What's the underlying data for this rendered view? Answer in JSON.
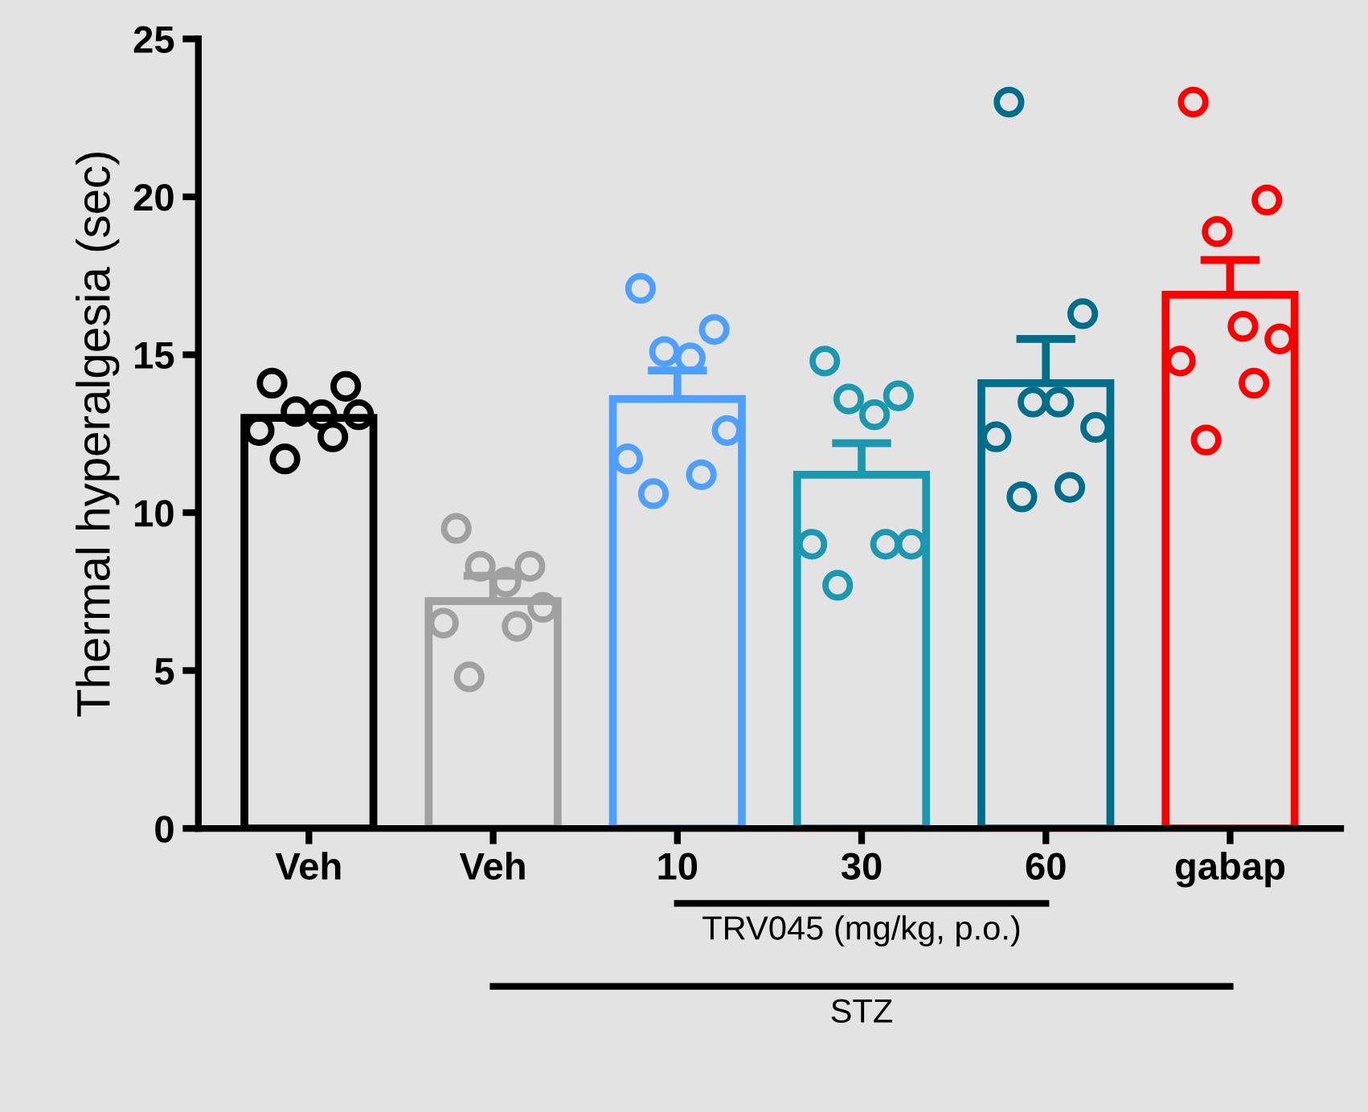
{
  "chart_data": {
    "type": "bar",
    "ylabel": "Thermal hyperalgesia (sec)",
    "categories": [
      "Veh",
      "Veh",
      "10",
      "30",
      "60",
      "gabap"
    ],
    "values": [
      13.0,
      7.2,
      13.6,
      11.2,
      14.1,
      16.9
    ],
    "colors": [
      "#000000",
      "#a0a0a0",
      "#4da0ff",
      "#1a98b0",
      "#006e8a",
      "#ff0000"
    ],
    "errors": [
      null,
      [
        7.2,
        8.0
      ],
      [
        13.6,
        14.5
      ],
      [
        11.2,
        12.2
      ],
      [
        14.1,
        15.5
      ],
      [
        16.9,
        18.0
      ]
    ],
    "series": [
      {
        "type": "scatter",
        "marker": "circle",
        "values": [
          14.1,
          9.5,
          17.1,
          14.8,
          23.0,
          23.0
        ],
        "colors": [
          "#000000",
          "#a0a0a0",
          "#4da0ff",
          "#1a98b0",
          "#006e8a",
          "#ff0000"
        ]
      },
      {
        "type": "scatter",
        "marker": "circle",
        "values": [
          14.0,
          8.3,
          15.8,
          13.7,
          16.3,
          19.9
        ],
        "colors": [
          "#000000",
          "#a0a0a0",
          "#4da0ff",
          "#1a98b0",
          "#006e8a",
          "#ff0000"
        ]
      },
      {
        "type": "scatter",
        "marker": "circle",
        "values": [
          13.2,
          8.3,
          15.1,
          13.6,
          13.5,
          18.9
        ],
        "colors": [
          "#000000",
          "#a0a0a0",
          "#4da0ff",
          "#1a98b0",
          "#006e8a",
          "#ff0000"
        ]
      },
      {
        "type": "scatter",
        "marker": "circle",
        "values": [
          13.1,
          7.8,
          14.9,
          13.1,
          13.5,
          15.9
        ],
        "colors": [
          "#000000",
          "#a0a0a0",
          "#4da0ff",
          "#1a98b0",
          "#006e8a",
          "#ff0000"
        ]
      },
      {
        "type": "scatter",
        "marker": "circle",
        "values": [
          13.1,
          7.0,
          12.6,
          9.0,
          12.7,
          15.5
        ],
        "colors": [
          "#000000",
          "#a0a0a0",
          "#4da0ff",
          "#1a98b0",
          "#006e8a",
          "#ff0000"
        ]
      },
      {
        "type": "scatter",
        "marker": "circle",
        "values": [
          12.6,
          6.5,
          11.7,
          9.0,
          12.4,
          14.8
        ],
        "colors": [
          "#000000",
          "#a0a0a0",
          "#4da0ff",
          "#1a98b0",
          "#006e8a",
          "#ff0000"
        ]
      },
      {
        "type": "scatter",
        "marker": "circle",
        "values": [
          12.4,
          6.4,
          11.2,
          9.0,
          10.8,
          14.1
        ],
        "colors": [
          "#000000",
          "#a0a0a0",
          "#4da0ff",
          "#1a98b0",
          "#006e8a",
          "#ff0000"
        ]
      },
      {
        "type": "scatter",
        "marker": "circle",
        "values": [
          11.7,
          4.8,
          10.6,
          7.7,
          10.5,
          12.3
        ],
        "colors": [
          "#000000",
          "#a0a0a0",
          "#4da0ff",
          "#1a98b0",
          "#006e8a",
          "#ff0000"
        ]
      }
    ],
    "ylim": [
      0,
      25
    ],
    "yticks": [
      0,
      5,
      10,
      15,
      20,
      25
    ],
    "grid": false,
    "legend": false,
    "annotations": [
      "TRV045 (mg/kg, p.o.)",
      "STZ"
    ]
  }
}
